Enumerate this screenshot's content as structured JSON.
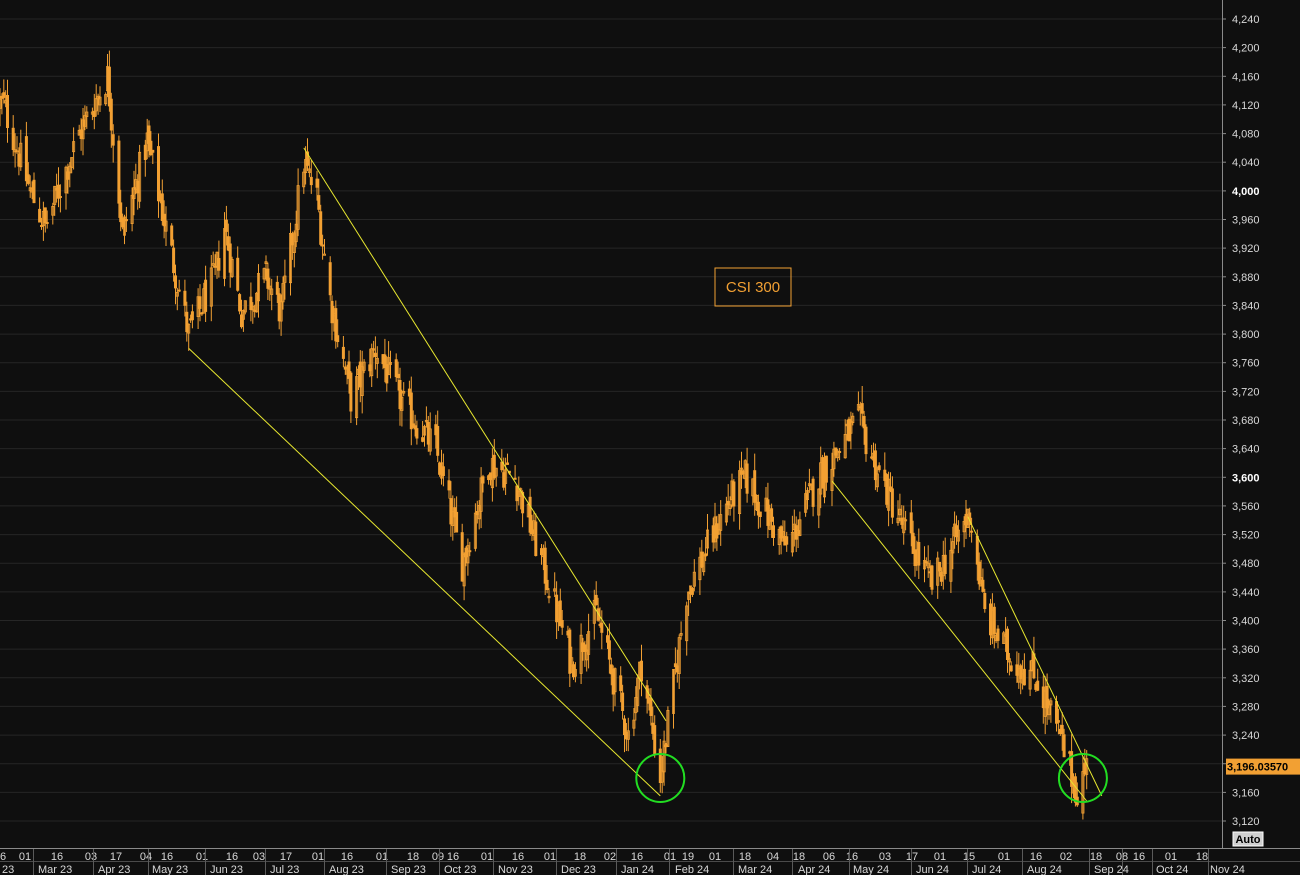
{
  "chart_data": {
    "type": "candlestick",
    "title": "CSI 300",
    "last_price_label": "3,196.03570",
    "last_price": 3196.0357,
    "scale_button": "Auto",
    "y_ticks": [
      3120,
      3160,
      3200,
      3240,
      3280,
      3320,
      3360,
      3400,
      3440,
      3480,
      3520,
      3560,
      3600,
      3640,
      3680,
      3720,
      3760,
      3800,
      3840,
      3880,
      3920,
      3960,
      4000,
      4040,
      4080,
      4120,
      4160,
      4200,
      4240
    ],
    "y_tick_labels": [
      "3,120",
      "3,160",
      "3,200",
      "3,240",
      "3,280",
      "3,320",
      "3,360",
      "3,400",
      "3,440",
      "3,480",
      "3,520",
      "3,560",
      "3,600",
      "3,640",
      "3,680",
      "3,720",
      "3,760",
      "3,800",
      "3,840",
      "3,880",
      "3,920",
      "3,960",
      "4,000",
      "4,040",
      "4,080",
      "4,120",
      "4,160",
      "4,200",
      "4,240"
    ],
    "y_bold_ticks": [
      3600,
      4000
    ],
    "ylim": [
      3105,
      4262
    ],
    "x_day_labels": [
      "6",
      "01",
      "16",
      "03",
      "17",
      "04",
      "16",
      "01",
      "16",
      "03",
      "17",
      "01",
      "16",
      "01",
      "18",
      "09",
      "16",
      "01",
      "16",
      "01",
      "18",
      "02",
      "16",
      "01",
      "19",
      "01",
      "18",
      "04",
      "18",
      "06",
      "16",
      "03",
      "17",
      "01",
      "15",
      "01",
      "16",
      "02",
      "18",
      "08",
      "16",
      "01",
      "18"
    ],
    "x_month_labels": [
      "23",
      "Mar 23",
      "Apr 23",
      "May 23",
      "Jun 23",
      "Jul 23",
      "Aug 23",
      "Sep 23",
      "Oct 23",
      "Nov 23",
      "Dec 23",
      "Jan 24",
      "Feb 24",
      "Mar 24",
      "Apr 24",
      "May 24",
      "Jun 24",
      "Jul 24",
      "Aug 24",
      "Sep 24",
      "Oct 24",
      "Nov 24"
    ],
    "key_points": [
      {
        "date": "2023-02-22",
        "close": 4120
      },
      {
        "date": "2023-03-08",
        "close": 4000
      },
      {
        "date": "2023-03-16",
        "close": 3950
      },
      {
        "date": "2023-04-03",
        "close": 4080
      },
      {
        "date": "2023-04-18",
        "close": 4160
      },
      {
        "date": "2023-04-26",
        "close": 3940
      },
      {
        "date": "2023-05-09",
        "close": 4070
      },
      {
        "date": "2023-05-18",
        "close": 3960
      },
      {
        "date": "2023-05-31",
        "close": 3800
      },
      {
        "date": "2023-06-14",
        "close": 3880
      },
      {
        "date": "2023-06-19",
        "close": 3950
      },
      {
        "date": "2023-06-28",
        "close": 3830
      },
      {
        "date": "2023-07-11",
        "close": 3880
      },
      {
        "date": "2023-07-19",
        "close": 3830
      },
      {
        "date": "2023-07-31",
        "close": 4040
      },
      {
        "date": "2023-08-07",
        "close": 3990
      },
      {
        "date": "2023-08-14",
        "close": 3850
      },
      {
        "date": "2023-08-25",
        "close": 3710
      },
      {
        "date": "2023-09-07",
        "close": 3780
      },
      {
        "date": "2023-09-22",
        "close": 3700
      },
      {
        "date": "2023-10-09",
        "close": 3640
      },
      {
        "date": "2023-10-23",
        "close": 3480
      },
      {
        "date": "2023-11-06",
        "close": 3620
      },
      {
        "date": "2023-11-20",
        "close": 3600
      },
      {
        "date": "2023-12-08",
        "close": 3450
      },
      {
        "date": "2023-12-20",
        "close": 3340
      },
      {
        "date": "2024-01-02",
        "close": 3410
      },
      {
        "date": "2024-01-19",
        "close": 3240
      },
      {
        "date": "2024-01-26",
        "close": 3340
      },
      {
        "date": "2024-02-05",
        "close": 3180
      },
      {
        "date": "2024-02-19",
        "close": 3440
      },
      {
        "date": "2024-03-11",
        "close": 3560
      },
      {
        "date": "2024-03-21",
        "close": 3600
      },
      {
        "date": "2024-04-12",
        "close": 3500
      },
      {
        "date": "2024-04-29",
        "close": 3600
      },
      {
        "date": "2024-05-20",
        "close": 3680
      },
      {
        "date": "2024-05-30",
        "close": 3610
      },
      {
        "date": "2024-06-18",
        "close": 3500
      },
      {
        "date": "2024-06-28",
        "close": 3450
      },
      {
        "date": "2024-07-18",
        "close": 3550
      },
      {
        "date": "2024-07-26",
        "close": 3410
      },
      {
        "date": "2024-08-08",
        "close": 3350
      },
      {
        "date": "2024-08-22",
        "close": 3320
      },
      {
        "date": "2024-09-02",
        "close": 3250
      },
      {
        "date": "2024-09-13",
        "close": 3160
      },
      {
        "date": "2024-09-18",
        "close": 3196
      }
    ],
    "trend_lines": [
      {
        "from": {
          "date": "2023-07-31",
          "value": 4060
        },
        "to": {
          "date": "2024-02-08",
          "value": 3260
        }
      },
      {
        "from": {
          "date": "2023-05-31",
          "value": 3780
        },
        "to": {
          "date": "2024-02-05",
          "value": 3155
        }
      },
      {
        "from": {
          "date": "2024-05-06",
          "value": 3595
        },
        "to": {
          "date": "2024-09-18",
          "value": 3148
        }
      },
      {
        "from": {
          "date": "2024-07-17",
          "value": 3545
        },
        "to": {
          "date": "2024-09-26",
          "value": 3155
        }
      }
    ],
    "highlight_circles": [
      {
        "date": "2024-02-05",
        "value": 3180
      },
      {
        "date": "2024-09-16",
        "value": 3180
      }
    ],
    "colors": {
      "background": "#0f0f0f",
      "candles": "#f2a033",
      "trend_lines": "#e8e830",
      "circles": "#22dd22",
      "title": "#f2a033",
      "price_tag": "#f2a033",
      "axis_text": "#d8d8d8"
    }
  }
}
